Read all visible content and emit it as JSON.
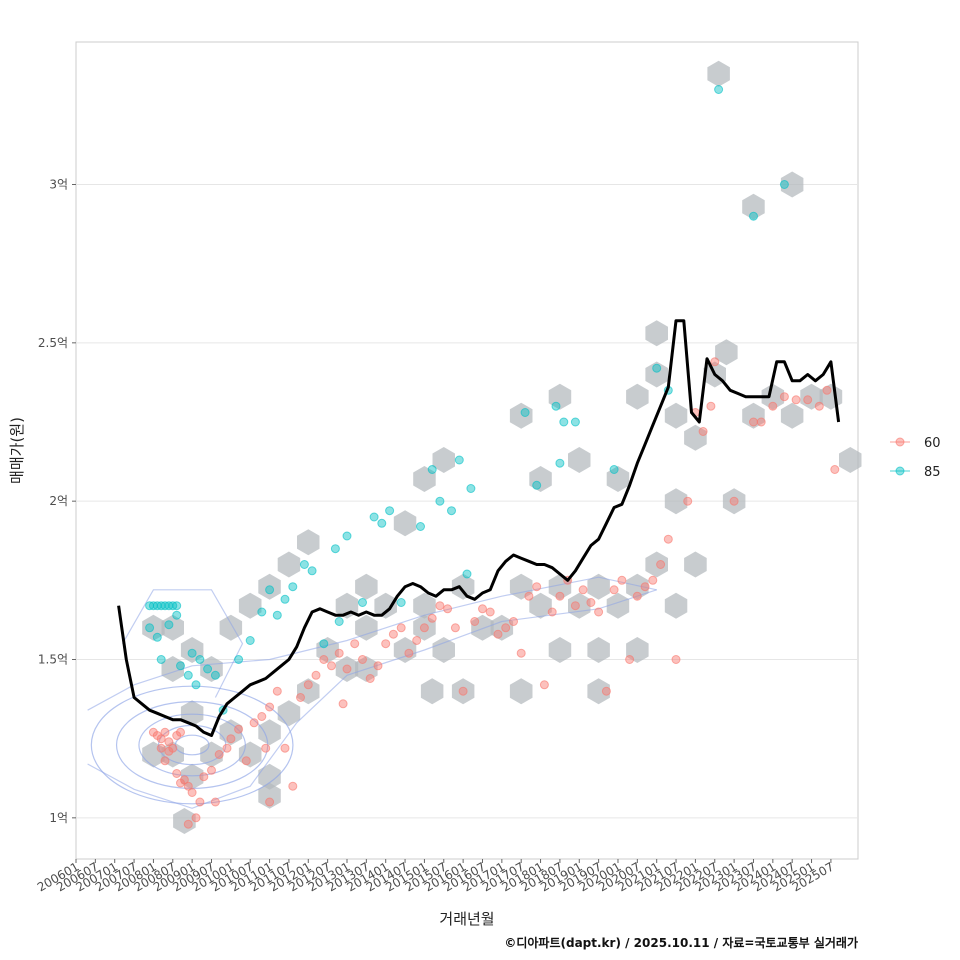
{
  "chart_data": {
    "type": "scatter",
    "title": "",
    "xlabel": "거래년월",
    "ylabel": "매매가(원)",
    "caption": "©디아파트(dapt.kr) / 2025.10.11 / 자료=국토교통부 실거래가",
    "xlim": [
      2006.0,
      2026.2
    ],
    "ylim": [
      0.87,
      3.45
    ],
    "x_ticks": [
      "200601",
      "200607",
      "200701",
      "200707",
      "200801",
      "200807",
      "200901",
      "200907",
      "201001",
      "201007",
      "201101",
      "201107",
      "201201",
      "201207",
      "201301",
      "201307",
      "201401",
      "201407",
      "201501",
      "201507",
      "201601",
      "201607",
      "201701",
      "201707",
      "201801",
      "201807",
      "201901",
      "201907",
      "202001",
      "202007",
      "202101",
      "202107",
      "202201",
      "202207",
      "202301",
      "202307",
      "202401",
      "202407",
      "202501",
      "202507"
    ],
    "y_ticks": [
      {
        "value": 1.0,
        "label": "1억"
      },
      {
        "value": 1.5,
        "label": "1.5억"
      },
      {
        "value": 2.0,
        "label": "2억"
      },
      {
        "value": 2.5,
        "label": "2.5억"
      },
      {
        "value": 3.0,
        "label": "3억"
      }
    ],
    "grid": true,
    "legend_position": "right",
    "series": [
      {
        "name": "60",
        "color": "#F8766D",
        "points": [
          [
            2008.0,
            1.27
          ],
          [
            2008.1,
            1.26
          ],
          [
            2008.2,
            1.25
          ],
          [
            2008.3,
            1.27
          ],
          [
            2008.4,
            1.24
          ],
          [
            2008.5,
            1.22
          ],
          [
            2008.6,
            1.26
          ],
          [
            2008.7,
            1.27
          ],
          [
            2008.2,
            1.22
          ],
          [
            2008.4,
            1.21
          ],
          [
            2008.6,
            1.14
          ],
          [
            2008.8,
            1.12
          ],
          [
            2008.9,
            1.1
          ],
          [
            2009.0,
            1.08
          ],
          [
            2009.2,
            1.05
          ],
          [
            2008.9,
            0.98
          ],
          [
            2009.1,
            1.0
          ],
          [
            2009.3,
            1.13
          ],
          [
            2009.5,
            1.15
          ],
          [
            2009.7,
            1.2
          ],
          [
            2009.9,
            1.22
          ],
          [
            2010.0,
            1.25
          ],
          [
            2010.2,
            1.28
          ],
          [
            2010.4,
            1.18
          ],
          [
            2010.6,
            1.3
          ],
          [
            2010.8,
            1.32
          ],
          [
            2011.0,
            1.35
          ],
          [
            2011.2,
            1.4
          ],
          [
            2011.4,
            1.22
          ],
          [
            2011.6,
            1.1
          ],
          [
            2011.0,
            1.05
          ],
          [
            2011.8,
            1.38
          ],
          [
            2012.0,
            1.42
          ],
          [
            2012.2,
            1.45
          ],
          [
            2012.4,
            1.5
          ],
          [
            2012.6,
            1.48
          ],
          [
            2012.8,
            1.52
          ],
          [
            2013.0,
            1.47
          ],
          [
            2013.2,
            1.55
          ],
          [
            2013.4,
            1.5
          ],
          [
            2013.6,
            1.44
          ],
          [
            2013.8,
            1.48
          ],
          [
            2014.0,
            1.55
          ],
          [
            2014.2,
            1.58
          ],
          [
            2014.4,
            1.6
          ],
          [
            2014.6,
            1.52
          ],
          [
            2014.8,
            1.56
          ],
          [
            2015.0,
            1.6
          ],
          [
            2015.2,
            1.63
          ],
          [
            2015.4,
            1.67
          ],
          [
            2015.6,
            1.66
          ],
          [
            2015.8,
            1.6
          ],
          [
            2016.0,
            1.4
          ],
          [
            2016.3,
            1.62
          ],
          [
            2016.5,
            1.66
          ],
          [
            2016.7,
            1.65
          ],
          [
            2016.9,
            1.58
          ],
          [
            2017.1,
            1.6
          ],
          [
            2017.3,
            1.62
          ],
          [
            2017.5,
            1.52
          ],
          [
            2017.7,
            1.7
          ],
          [
            2017.9,
            1.73
          ],
          [
            2018.1,
            1.42
          ],
          [
            2018.3,
            1.65
          ],
          [
            2018.5,
            1.7
          ],
          [
            2018.7,
            1.75
          ],
          [
            2018.9,
            1.67
          ],
          [
            2019.1,
            1.72
          ],
          [
            2019.3,
            1.68
          ],
          [
            2019.5,
            1.65
          ],
          [
            2019.7,
            1.4
          ],
          [
            2019.9,
            1.72
          ],
          [
            2020.1,
            1.75
          ],
          [
            2020.3,
            1.5
          ],
          [
            2020.5,
            1.7
          ],
          [
            2020.7,
            1.73
          ],
          [
            2020.9,
            1.75
          ],
          [
            2021.1,
            1.8
          ],
          [
            2021.3,
            1.88
          ],
          [
            2021.5,
            1.5
          ],
          [
            2021.8,
            2.0
          ],
          [
            2022.0,
            2.28
          ],
          [
            2022.2,
            2.22
          ],
          [
            2022.4,
            2.3
          ],
          [
            2022.5,
            2.44
          ],
          [
            2023.0,
            2.0
          ],
          [
            2023.5,
            2.25
          ],
          [
            2023.7,
            2.25
          ],
          [
            2024.0,
            2.3
          ],
          [
            2024.3,
            2.33
          ],
          [
            2024.6,
            2.32
          ],
          [
            2024.9,
            2.32
          ],
          [
            2025.2,
            2.3
          ],
          [
            2025.4,
            2.35
          ],
          [
            2025.6,
            2.1
          ],
          [
            2008.3,
            1.18
          ],
          [
            2008.7,
            1.11
          ],
          [
            2009.6,
            1.05
          ],
          [
            2010.9,
            1.22
          ],
          [
            2012.9,
            1.36
          ]
        ]
      },
      {
        "name": "85",
        "color": "#00BFC4",
        "points": [
          [
            2007.9,
            1.67
          ],
          [
            2008.0,
            1.67
          ],
          [
            2008.1,
            1.67
          ],
          [
            2008.2,
            1.67
          ],
          [
            2008.3,
            1.67
          ],
          [
            2008.4,
            1.67
          ],
          [
            2008.5,
            1.67
          ],
          [
            2008.6,
            1.67
          ],
          [
            2007.9,
            1.6
          ],
          [
            2008.1,
            1.57
          ],
          [
            2008.2,
            1.5
          ],
          [
            2008.4,
            1.61
          ],
          [
            2008.6,
            1.64
          ],
          [
            2008.7,
            1.48
          ],
          [
            2008.9,
            1.45
          ],
          [
            2009.0,
            1.52
          ],
          [
            2009.2,
            1.5
          ],
          [
            2009.4,
            1.47
          ],
          [
            2009.6,
            1.45
          ],
          [
            2009.8,
            1.34
          ],
          [
            2010.2,
            1.5
          ],
          [
            2010.5,
            1.56
          ],
          [
            2010.8,
            1.65
          ],
          [
            2011.0,
            1.72
          ],
          [
            2011.2,
            1.64
          ],
          [
            2011.4,
            1.69
          ],
          [
            2011.6,
            1.73
          ],
          [
            2011.9,
            1.8
          ],
          [
            2012.1,
            1.78
          ],
          [
            2012.4,
            1.55
          ],
          [
            2012.7,
            1.85
          ],
          [
            2013.0,
            1.89
          ],
          [
            2013.4,
            1.68
          ],
          [
            2013.7,
            1.95
          ],
          [
            2013.9,
            1.93
          ],
          [
            2014.1,
            1.97
          ],
          [
            2014.4,
            1.68
          ],
          [
            2014.9,
            1.92
          ],
          [
            2015.2,
            2.1
          ],
          [
            2015.4,
            2.0
          ],
          [
            2015.7,
            1.97
          ],
          [
            2015.9,
            2.13
          ],
          [
            2016.1,
            1.77
          ],
          [
            2017.6,
            2.28
          ],
          [
            2017.9,
            2.05
          ],
          [
            2018.4,
            2.3
          ],
          [
            2018.5,
            2.12
          ],
          [
            2018.6,
            2.25
          ],
          [
            2018.9,
            2.25
          ],
          [
            2019.9,
            2.1
          ],
          [
            2021.0,
            2.42
          ],
          [
            2021.3,
            2.35
          ],
          [
            2022.6,
            3.3
          ],
          [
            2023.5,
            2.9
          ],
          [
            2024.3,
            3.0
          ],
          [
            2016.2,
            2.04
          ],
          [
            2012.8,
            1.62
          ],
          [
            2009.1,
            1.42
          ]
        ]
      }
    ],
    "trend": {
      "name": "",
      "color": "#000000",
      "x": [
        2007.1,
        2007.3,
        2007.5,
        2007.7,
        2007.9,
        2008.1,
        2008.3,
        2008.5,
        2008.7,
        2008.9,
        2009.1,
        2009.3,
        2009.5,
        2009.7,
        2009.9,
        2010.1,
        2010.3,
        2010.5,
        2010.7,
        2010.9,
        2011.1,
        2011.3,
        2011.5,
        2011.7,
        2011.9,
        2012.1,
        2012.3,
        2012.5,
        2012.7,
        2012.9,
        2013.1,
        2013.3,
        2013.5,
        2013.7,
        2013.9,
        2014.1,
        2014.3,
        2014.5,
        2014.7,
        2014.9,
        2015.1,
        2015.3,
        2015.5,
        2015.7,
        2015.9,
        2016.1,
        2016.3,
        2016.5,
        2016.7,
        2016.9,
        2017.1,
        2017.3,
        2017.5,
        2017.7,
        2017.9,
        2018.1,
        2018.3,
        2018.5,
        2018.7,
        2018.9,
        2019.1,
        2019.3,
        2019.5,
        2019.7,
        2019.9,
        2020.1,
        2020.3,
        2020.5,
        2020.7,
        2020.9,
        2021.1,
        2021.3,
        2021.5,
        2021.7,
        2021.9,
        2022.1,
        2022.3,
        2022.5,
        2022.7,
        2022.9,
        2023.1,
        2023.3,
        2023.5,
        2023.7,
        2023.9,
        2024.1,
        2024.3,
        2024.5,
        2024.7,
        2024.9,
        2025.1,
        2025.3,
        2025.5,
        2025.7
      ],
      "y": [
        1.67,
        1.5,
        1.38,
        1.36,
        1.34,
        1.33,
        1.32,
        1.31,
        1.31,
        1.3,
        1.29,
        1.27,
        1.26,
        1.32,
        1.36,
        1.38,
        1.4,
        1.42,
        1.43,
        1.44,
        1.46,
        1.48,
        1.5,
        1.54,
        1.6,
        1.65,
        1.66,
        1.65,
        1.64,
        1.64,
        1.65,
        1.64,
        1.65,
        1.64,
        1.64,
        1.66,
        1.7,
        1.73,
        1.74,
        1.73,
        1.71,
        1.7,
        1.72,
        1.72,
        1.73,
        1.7,
        1.69,
        1.71,
        1.72,
        1.78,
        1.81,
        1.83,
        1.82,
        1.81,
        1.8,
        1.8,
        1.79,
        1.77,
        1.75,
        1.78,
        1.82,
        1.86,
        1.88,
        1.93,
        1.98,
        1.99,
        2.05,
        2.12,
        2.18,
        2.24,
        2.3,
        2.36,
        2.57,
        2.57,
        2.28,
        2.25,
        2.45,
        2.4,
        2.38,
        2.35,
        2.34,
        2.33,
        2.33,
        2.33,
        2.33,
        2.44,
        2.44,
        2.38,
        2.38,
        2.4,
        2.38,
        2.4,
        2.44,
        2.25
      ]
    },
    "hexbins": [
      [
        2008.0,
        1.6
      ],
      [
        2008.5,
        1.6
      ],
      [
        2009.0,
        1.53
      ],
      [
        2008.5,
        1.47
      ],
      [
        2009.5,
        1.47
      ],
      [
        2009.0,
        1.33
      ],
      [
        2008.5,
        1.2
      ],
      [
        2009.0,
        1.13
      ],
      [
        2008.0,
        1.2
      ],
      [
        2009.5,
        1.2
      ],
      [
        2010.0,
        1.27
      ],
      [
        2010.5,
        1.2
      ],
      [
        2011.0,
        1.27
      ],
      [
        2011.5,
        1.33
      ],
      [
        2011.0,
        1.13
      ],
      [
        2011.0,
        1.07
      ],
      [
        2008.8,
        0.99
      ],
      [
        2010.0,
        1.6
      ],
      [
        2010.5,
        1.67
      ],
      [
        2011.0,
        1.73
      ],
      [
        2011.5,
        1.8
      ],
      [
        2012.0,
        1.87
      ],
      [
        2012.5,
        1.53
      ],
      [
        2013.0,
        1.47
      ],
      [
        2013.5,
        1.6
      ],
      [
        2013.0,
        1.67
      ],
      [
        2013.5,
        1.73
      ],
      [
        2014.0,
        1.67
      ],
      [
        2014.5,
        1.53
      ],
      [
        2015.0,
        1.67
      ],
      [
        2015.5,
        1.53
      ],
      [
        2015.0,
        1.6
      ],
      [
        2014.5,
        1.93
      ],
      [
        2015.0,
        2.07
      ],
      [
        2015.5,
        2.13
      ],
      [
        2016.0,
        1.73
      ],
      [
        2016.5,
        1.6
      ],
      [
        2016.0,
        1.4
      ],
      [
        2015.2,
        1.4
      ],
      [
        2017.0,
        1.6
      ],
      [
        2017.5,
        1.73
      ],
      [
        2018.0,
        1.67
      ],
      [
        2018.5,
        1.73
      ],
      [
        2019.0,
        1.67
      ],
      [
        2019.5,
        1.73
      ],
      [
        2020.0,
        1.67
      ],
      [
        2020.5,
        1.73
      ],
      [
        2021.0,
        1.8
      ],
      [
        2021.5,
        1.67
      ],
      [
        2018.5,
        1.53
      ],
      [
        2019.5,
        1.53
      ],
      [
        2020.5,
        1.53
      ],
      [
        2017.5,
        1.4
      ],
      [
        2019.5,
        1.4
      ],
      [
        2017.5,
        2.27
      ],
      [
        2018.0,
        2.07
      ],
      [
        2018.5,
        2.33
      ],
      [
        2019.0,
        2.13
      ],
      [
        2020.0,
        2.07
      ],
      [
        2020.5,
        2.33
      ],
      [
        2021.0,
        2.4
      ],
      [
        2021.0,
        2.53
      ],
      [
        2021.5,
        2.27
      ],
      [
        2022.5,
        2.4
      ],
      [
        2022.8,
        2.47
      ],
      [
        2021.5,
        2.0
      ],
      [
        2022.0,
        2.2
      ],
      [
        2022.0,
        1.8
      ],
      [
        2023.5,
        2.27
      ],
      [
        2024.0,
        2.33
      ],
      [
        2024.5,
        2.27
      ],
      [
        2025.0,
        2.33
      ],
      [
        2025.5,
        2.33
      ],
      [
        2026.0,
        2.13
      ],
      [
        2023.0,
        2.0
      ],
      [
        2022.6,
        3.35
      ],
      [
        2023.5,
        2.93
      ],
      [
        2024.5,
        3.0
      ],
      [
        2012.0,
        1.4
      ],
      [
        2013.5,
        1.47
      ]
    ]
  }
}
